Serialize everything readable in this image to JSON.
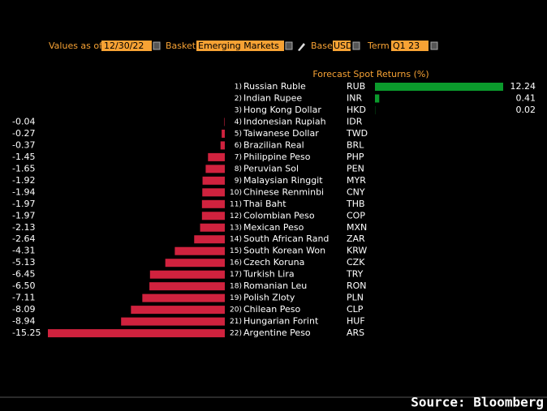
{
  "toolbar": {
    "values_as_of_label": "Values as of",
    "date": "12/30/22",
    "basket_label": "Basket",
    "basket": "Emerging Markets",
    "base_label": "Base",
    "base": "USD",
    "term_label": "Term",
    "term": "Q1 23"
  },
  "chart_data": {
    "type": "bar",
    "title": "Forecast Spot Returns (%)",
    "ranks": [
      "1)",
      "2)",
      "3)",
      "4)",
      "5)",
      "6)",
      "7)",
      "8)",
      "9)",
      "10)",
      "11)",
      "12)",
      "13)",
      "14)",
      "15)",
      "16)",
      "17)",
      "18)",
      "19)",
      "20)",
      "21)",
      "22)"
    ],
    "categories": [
      "Russian Ruble",
      "Indian Rupee",
      "Hong Kong Dollar",
      "Indonesian Rupiah",
      "Taiwanese Dollar",
      "Brazilian Real",
      "Philippine Peso",
      "Peruvian Sol",
      "Malaysian Ringgit",
      "Chinese Renminbi",
      "Thai Baht",
      "Colombian Peso",
      "Mexican Peso",
      "South African Rand",
      "South Korean Won",
      "Czech Koruna",
      "Turkish Lira",
      "Romanian Leu",
      "Polish Zloty",
      "Chilean Peso",
      "Hungarian Forint",
      "Argentine Peso"
    ],
    "codes": [
      "RUB",
      "INR",
      "HKD",
      "IDR",
      "TWD",
      "BRL",
      "PHP",
      "PEN",
      "MYR",
      "CNY",
      "THB",
      "COP",
      "MXN",
      "ZAR",
      "KRW",
      "CZK",
      "TRY",
      "RON",
      "PLN",
      "CLP",
      "HUF",
      "ARS"
    ],
    "values": [
      12.24,
      0.41,
      0.02,
      -0.04,
      -0.27,
      -0.37,
      -1.45,
      -1.65,
      -1.92,
      -1.94,
      -1.97,
      -1.97,
      -2.13,
      -2.64,
      -4.31,
      -5.13,
      -6.45,
      -6.5,
      -7.11,
      -8.09,
      -8.94,
      -15.25
    ],
    "value_labels": [
      "12.24",
      "0.41",
      "0.02",
      "-0.04",
      "-0.27",
      "-0.37",
      "-1.45",
      "-1.65",
      "-1.92",
      "-1.94",
      "-1.97",
      "-1.97",
      "-2.13",
      "-2.64",
      "-4.31",
      "-5.13",
      "-6.45",
      "-6.50",
      "-7.11",
      "-8.09",
      "-8.94",
      "-15.25"
    ],
    "positive_color": "#0b9a2c",
    "negative_color": "#d0223e"
  },
  "source": "Source: Bloomberg"
}
